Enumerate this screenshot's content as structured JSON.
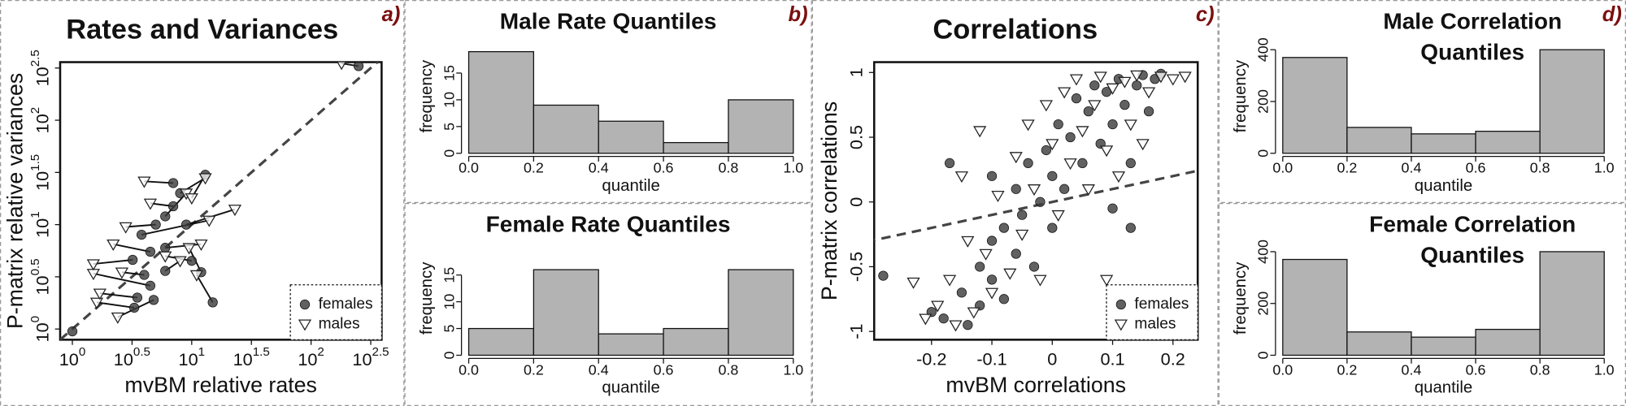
{
  "chart_data": [
    {
      "type": "scatter",
      "panel_label": "a)",
      "title": "Rates and Variances",
      "x_label": "mvBM relative rates",
      "y_label": "P-matrix relative variances",
      "log_x": true,
      "log_y": true,
      "paired": true,
      "identity_line": true,
      "legend": "bottom right",
      "xlim": [
        0.79,
        390
      ],
      "ylim": [
        0.79,
        360
      ],
      "xticks": [
        {
          "value": 1,
          "label": "10^0"
        },
        {
          "value": 3.162,
          "label": "10^0.5"
        },
        {
          "value": 10,
          "label": "10^1"
        },
        {
          "value": 31.62,
          "label": "10^1.5"
        },
        {
          "value": 100,
          "label": "10^2"
        },
        {
          "value": 316.2,
          "label": "10^2.5"
        }
      ],
      "yticks": [
        {
          "value": 1,
          "label": "10^0"
        },
        {
          "value": 3.162,
          "label": "10^0.5"
        },
        {
          "value": 10,
          "label": "10^1"
        },
        {
          "value": 31.62,
          "label": "10^1.5"
        },
        {
          "value": 100,
          "label": "10^2"
        },
        {
          "value": 316.2,
          "label": "10^2.5"
        }
      ],
      "series": [
        {
          "name": "females",
          "marker": "circle",
          "color": "#3a3a3a",
          "x": [
            3.3,
            3.5,
            4.8,
            4.5,
            4,
            6,
            3.2,
            4.5,
            12,
            15,
            6,
            5,
            6,
            7,
            8,
            13,
            9,
            3.8,
            7,
            10,
            250,
            1.0
          ],
          "values": [
            1.6,
            2.0,
            1.9,
            2.6,
            3.3,
            3.6,
            4.6,
            5.5,
            3.5,
            1.8,
            6,
            10,
            12,
            15,
            20,
            30,
            10,
            8,
            25,
            4.5,
            330,
            0.95
          ]
        },
        {
          "name": "males",
          "marker": "triangle",
          "color": "#ffffff",
          "x": [
            1.6,
            1.7,
            2.4,
            1.5,
            2.6,
            8,
            1.5,
            2.2,
            9.5,
            11,
            12,
            2.8,
            9,
            4.5,
            13,
            10,
            23,
            14,
            4,
            6,
            180,
            null
          ],
          "values": [
            1.8,
            2.2,
            1.3,
            3.4,
            3.5,
            4.5,
            4.2,
            6.5,
            6.0,
            3.3,
            6.5,
            9.5,
            20,
            16,
            28,
            18,
            14,
            11,
            26,
            5,
            350,
            null
          ]
        }
      ]
    },
    {
      "type": "histogram",
      "panel_label": "b)",
      "title": "Male Rate Quantiles",
      "x_label": "quantile",
      "y_label": "frequency",
      "color": "#b3b3b3",
      "bins": [
        0,
        0.2,
        0.4,
        0.6,
        0.8,
        1
      ],
      "values": [
        19,
        9,
        6,
        2,
        10
      ],
      "xlim": [
        0,
        1
      ],
      "ylim": [
        0,
        21.3
      ],
      "xticks": [
        {
          "value": 0,
          "label": "0.0"
        },
        0.2,
        0.4,
        0.6,
        0.8,
        {
          "value": 1,
          "label": "1.0"
        }
      ],
      "yticks": [
        0,
        5,
        10,
        15
      ]
    },
    {
      "type": "histogram",
      "title": "Female Rate Quantiles",
      "x_label": "quantile",
      "y_label": "frequency",
      "color": "#b3b3b3",
      "bins": [
        0,
        0.2,
        0.4,
        0.6,
        0.8,
        1
      ],
      "values": [
        5,
        16,
        4,
        5,
        16
      ],
      "xlim": [
        0,
        1
      ],
      "ylim": [
        0,
        21.3
      ],
      "xticks": [
        {
          "value": 0,
          "label": "0.0"
        },
        0.2,
        0.4,
        0.6,
        0.8,
        {
          "value": 1,
          "label": "1.0"
        }
      ],
      "yticks": [
        0,
        5,
        10,
        15
      ]
    },
    {
      "type": "scatter",
      "panel_label": "c)",
      "title": "Correlations",
      "x_label": "mvBM correlations",
      "y_label": "P-matrix correlations",
      "identity_line": true,
      "legend": "bottom right",
      "xlim": [
        -0.295,
        0.241
      ],
      "ylim": [
        -1.064,
        1.08
      ],
      "xticks": [
        -0.2,
        -0.1,
        0,
        0.1,
        0.2
      ],
      "yticks": [
        -1,
        -0.5,
        0,
        0.5,
        1
      ],
      "series": [
        {
          "name": "females",
          "marker": "circle",
          "color": "#3a3a3a",
          "x": [
            -0.28,
            -0.2,
            -0.18,
            -0.15,
            -0.14,
            -0.12,
            -0.12,
            -0.1,
            -0.1,
            -0.08,
            -0.08,
            -0.06,
            -0.06,
            -0.05,
            -0.04,
            -0.03,
            -0.02,
            -0.01,
            0,
            0,
            0.01,
            0.02,
            0.03,
            0.04,
            0.05,
            0.06,
            0.07,
            0.08,
            0.09,
            0.1,
            0.11,
            0.12,
            0.13,
            0.14,
            0.15,
            0.16,
            0.17,
            0.18,
            0.1,
            -0.1,
            0.13,
            -0.17
          ],
          "values": [
            -0.57,
            -0.85,
            -0.9,
            -0.7,
            -0.95,
            -0.5,
            -0.8,
            -0.3,
            -0.6,
            -0.2,
            -0.75,
            0.1,
            -0.4,
            -0.1,
            0.3,
            -0.5,
            0,
            0.4,
            0.2,
            -0.2,
            0.6,
            0.1,
            0.5,
            0.8,
            0.3,
            0.7,
            0.9,
            0.45,
            0.85,
            0.6,
            0.95,
            0.75,
            0.3,
            0.9,
            0.98,
            0.7,
            0.95,
            0.99,
            -0.05,
            0.2,
            -0.2,
            0.3
          ]
        },
        {
          "name": "males",
          "marker": "triangle",
          "color": "#ffffff",
          "x": [
            -0.21,
            -0.19,
            -0.17,
            -0.16,
            -0.15,
            -0.14,
            -0.13,
            -0.12,
            -0.11,
            -0.1,
            -0.09,
            -0.07,
            -0.06,
            -0.05,
            -0.04,
            -0.03,
            -0.02,
            -0.01,
            0,
            0.01,
            0.02,
            0.03,
            0.04,
            0.05,
            0.06,
            0.07,
            0.08,
            0.09,
            0.1,
            0.11,
            0.12,
            0.13,
            0.14,
            0.15,
            0.16,
            0.18,
            0.2,
            0.22,
            -0.23,
            0.09
          ],
          "values": [
            -0.9,
            -0.8,
            -0.6,
            -0.95,
            0.2,
            -0.3,
            -0.85,
            0.55,
            -0.4,
            -0.7,
            0.05,
            -0.55,
            0.35,
            -0.25,
            0.6,
            0.1,
            -0.6,
            0.75,
            0.45,
            -0.1,
            0.85,
            0.3,
            0.95,
            0.55,
            0.1,
            0.75,
            0.97,
            0.4,
            0.88,
            0.2,
            0.93,
            0.6,
            0.98,
            0.45,
            0.85,
            0.97,
            0.95,
            0.97,
            -0.62,
            -0.6
          ]
        }
      ]
    },
    {
      "type": "histogram",
      "panel_label": "d)",
      "title": [
        "Male Correlation",
        "Quantiles"
      ],
      "x_label": "quantile",
      "y_label": "frequency",
      "color": "#b3b3b3",
      "bins": [
        0,
        0.2,
        0.4,
        0.6,
        0.8,
        1
      ],
      "values": [
        370,
        100,
        75,
        85,
        400
      ],
      "xlim": [
        0,
        1
      ],
      "ylim": [
        0,
        440
      ],
      "xticks": [
        {
          "value": 0,
          "label": "0.0"
        },
        0.2,
        0.4,
        0.6,
        0.8,
        {
          "value": 1,
          "label": "1.0"
        }
      ],
      "yticks": [
        0,
        200,
        400
      ]
    },
    {
      "type": "histogram",
      "title": [
        "Female Correlation",
        "Quantiles"
      ],
      "x_label": "quantile",
      "y_label": "frequency",
      "color": "#b3b3b3",
      "bins": [
        0,
        0.2,
        0.4,
        0.6,
        0.8,
        1
      ],
      "values": [
        370,
        90,
        70,
        100,
        400
      ],
      "xlim": [
        0,
        1
      ],
      "ylim": [
        0,
        440
      ],
      "xticks": [
        {
          "value": 0,
          "label": "0.0"
        },
        0.2,
        0.4,
        0.6,
        0.8,
        {
          "value": 1,
          "label": "1.0"
        }
      ],
      "yticks": [
        0,
        200,
        400
      ]
    }
  ]
}
